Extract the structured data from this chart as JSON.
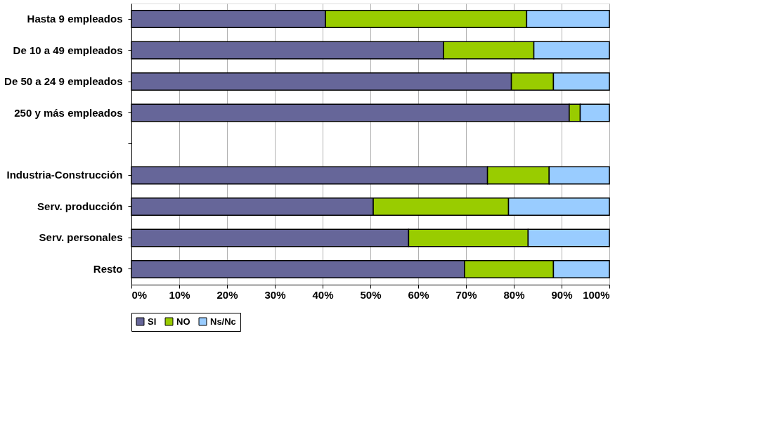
{
  "chart_data": {
    "type": "bar",
    "orientation": "horizontal",
    "stacked": true,
    "categories": [
      "Hasta 9 empleados",
      "De 10 a 49 empleados",
      "De 50 a 24 9 empleados",
      "250 y más empleados",
      null,
      "Industria-Construcción",
      "Serv. producción",
      "Serv. personales",
      "Resto"
    ],
    "series": [
      {
        "name": "SI",
        "color": "#666699",
        "values": [
          40.6,
          65.3,
          79.5,
          91.6,
          null,
          74.5,
          50.6,
          58.0,
          69.7
        ]
      },
      {
        "name": "NO",
        "color": "#99cc00",
        "values": [
          42.1,
          18.9,
          8.8,
          2.3,
          null,
          12.9,
          28.3,
          25.0,
          18.6
        ]
      },
      {
        "name": "Ns/Nc",
        "color": "#99ccff",
        "values": [
          17.3,
          15.8,
          11.7,
          6.1,
          null,
          12.6,
          21.1,
          17.0,
          11.7
        ]
      }
    ],
    "xlim": [
      0,
      100
    ],
    "xticks": [
      {
        "value": 0,
        "label": "0%"
      },
      {
        "value": 10,
        "label": "10%"
      },
      {
        "value": 20,
        "label": "20%"
      },
      {
        "value": 30,
        "label": "30%"
      },
      {
        "value": 40,
        "label": "40%"
      },
      {
        "value": 50,
        "label": "50%"
      },
      {
        "value": 60,
        "label": "60%"
      },
      {
        "value": 70,
        "label": "70%"
      },
      {
        "value": 80,
        "label": "80%"
      },
      {
        "value": 90,
        "label": "90%"
      },
      {
        "value": 100,
        "label": "100%"
      }
    ],
    "grid": "x",
    "legend": "bottom"
  }
}
